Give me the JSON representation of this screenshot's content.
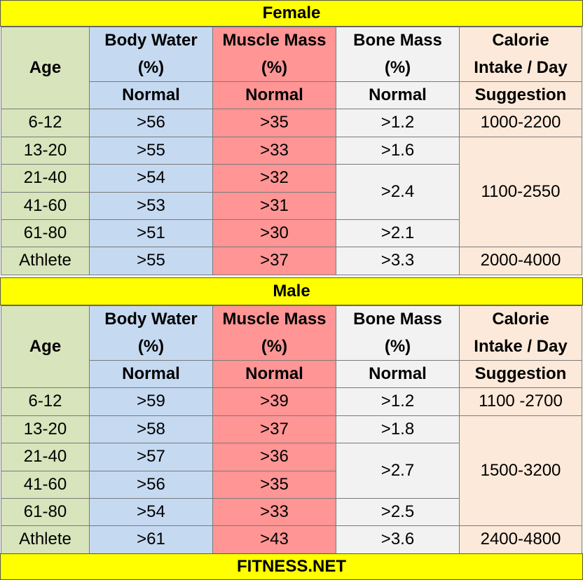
{
  "sections": {
    "female": {
      "title": "Female",
      "headers": {
        "age": "Age",
        "water1": "Body Water",
        "water2": "(%)",
        "muscle1": "Muscle Mass",
        "muscle2": "(%)",
        "bone1": "Bone Mass",
        "bone2": "(%)",
        "cal1": "Calorie",
        "cal2": "Intake / Day"
      },
      "sub": {
        "water": "Normal",
        "muscle": "Normal",
        "bone": "Normal",
        "cal": "Suggestion"
      },
      "rows": [
        {
          "age": "6-12",
          "water": ">56",
          "muscle": ">35",
          "bone": ">1.2",
          "cal": "1000-2200"
        },
        {
          "age": "13-20",
          "water": ">55",
          "muscle": ">33",
          "bone": ">1.6",
          "cal": "1100-2550"
        },
        {
          "age": "21-40",
          "water": ">54",
          "muscle": ">32",
          "bone": ">2.4"
        },
        {
          "age": "41-60",
          "water": ">53",
          "muscle": ">31"
        },
        {
          "age": "61-80",
          "water": ">51",
          "muscle": ">30",
          "bone": ">2.1"
        },
        {
          "age": "Athlete",
          "water": ">55",
          "muscle": ">37",
          "bone": ">3.3",
          "cal": "2000-4000"
        }
      ]
    },
    "male": {
      "title": "Male",
      "headers": {
        "age": "Age",
        "water1": "Body Water",
        "water2": "(%)",
        "muscle1": "Muscle Mass",
        "muscle2": "(%)",
        "bone1": "Bone Mass",
        "bone2": "(%)",
        "cal1": "Calorie",
        "cal2": "Intake / Day"
      },
      "sub": {
        "water": "Normal",
        "muscle": "Normal",
        "bone": "Normal",
        "cal": "Suggestion"
      },
      "rows": [
        {
          "age": "6-12",
          "water": ">59",
          "muscle": ">39",
          "bone": ">1.2",
          "cal": "1100 -2700"
        },
        {
          "age": "13-20",
          "water": ">58",
          "muscle": ">37",
          "bone": ">1.8",
          "cal": "1500-3200"
        },
        {
          "age": "21-40",
          "water": ">57",
          "muscle": ">36",
          "bone": ">2.7"
        },
        {
          "age": "41-60",
          "water": ">56",
          "muscle": ">35"
        },
        {
          "age": "61-80",
          "water": ">54",
          "muscle": ">33",
          "bone": ">2.5"
        },
        {
          "age": "Athlete",
          "water": ">61",
          "muscle": ">43",
          "bone": ">3.6",
          "cal": "2400-4800"
        }
      ]
    }
  },
  "footer": {
    "text": "FITNESS.NET"
  },
  "colors": {
    "band": "#ffff00",
    "age": "#d8e4bc",
    "water": "#c5d9f1",
    "muscle": "#ff9595",
    "bone": "#f2f2f2",
    "calorie": "#fde9d9"
  }
}
